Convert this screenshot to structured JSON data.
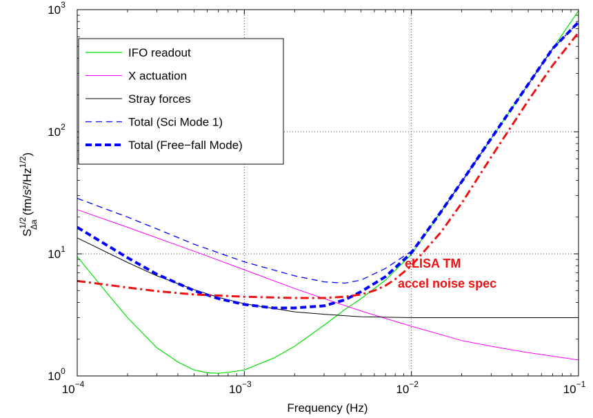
{
  "chart_data": {
    "type": "line",
    "xscale": "log",
    "yscale": "log",
    "xlim": [
      0.0001,
      0.1
    ],
    "ylim": [
      1,
      1000
    ],
    "xlabel": "Frequency (Hz)",
    "ylabel": {
      "base": "S",
      "sup": "1/2",
      "sub": "Δa",
      "units": "(fm/s²/Hz",
      "units_sup": "1/2",
      "close": ")"
    },
    "x_ticks": [
      {
        "value": 0.0001,
        "base": "10",
        "exp": "−4"
      },
      {
        "value": 0.001,
        "base": "10",
        "exp": "−3"
      },
      {
        "value": 0.01,
        "base": "10",
        "exp": "−2"
      },
      {
        "value": 0.1,
        "base": "10",
        "exp": "−1"
      }
    ],
    "y_ticks": [
      {
        "value": 1,
        "base": "10",
        "exp": "0"
      },
      {
        "value": 10,
        "base": "10",
        "exp": "1"
      },
      {
        "value": 100,
        "base": "10",
        "exp": "2"
      },
      {
        "value": 1000,
        "base": "10",
        "exp": "3"
      }
    ],
    "grid": true,
    "legend_position": "top-left",
    "series": [
      {
        "name": "IFO readout",
        "color": "#00e000",
        "style": "solid",
        "width": 1.2,
        "x": [
          0.0001,
          0.00015,
          0.0002,
          0.0003,
          0.0004,
          0.0005,
          0.0006,
          0.0007,
          0.0008,
          0.001,
          0.0015,
          0.002,
          0.003,
          0.004,
          0.005,
          0.007,
          0.01,
          0.015,
          0.02,
          0.03,
          0.05,
          0.07,
          0.1
        ],
        "y": [
          9.5,
          4.8,
          3.0,
          1.7,
          1.3,
          1.12,
          1.06,
          1.05,
          1.07,
          1.12,
          1.4,
          1.75,
          2.6,
          3.5,
          4.3,
          6.1,
          9.9,
          22,
          39,
          88,
          245,
          480,
          980
        ]
      },
      {
        "name": "X actuation",
        "color": "#ff00ff",
        "style": "solid",
        "width": 1,
        "x": [
          0.0001,
          0.0002,
          0.0003,
          0.0005,
          0.001,
          0.002,
          0.003,
          0.005,
          0.01,
          0.02,
          0.03,
          0.05,
          0.1
        ],
        "y": [
          23,
          16.5,
          13.5,
          10.5,
          7.4,
          5.2,
          4.3,
          3.4,
          2.55,
          1.95,
          1.75,
          1.55,
          1.35
        ]
      },
      {
        "name": "Stray forces",
        "color": "#000000",
        "style": "solid",
        "width": 1,
        "x": [
          0.0001,
          0.0002,
          0.0003,
          0.0005,
          0.0007,
          0.001,
          0.002,
          0.003,
          0.005,
          0.01,
          0.02,
          0.05,
          0.1
        ],
        "y": [
          13.5,
          8.5,
          6.6,
          5.1,
          4.4,
          3.9,
          3.35,
          3.2,
          3.05,
          3.0,
          3.0,
          3.0,
          3.0
        ]
      },
      {
        "name": "Total (Sci Mode 1)",
        "color": "#0000ff",
        "style": "dashed",
        "width": 1.3,
        "x": [
          0.0001,
          0.0002,
          0.0003,
          0.0005,
          0.001,
          0.002,
          0.003,
          0.004,
          0.005,
          0.007,
          0.01,
          0.015,
          0.02,
          0.03,
          0.05,
          0.07,
          0.1
        ],
        "y": [
          28.5,
          20,
          16,
          12,
          8.6,
          6.6,
          5.9,
          5.75,
          6.1,
          7.6,
          10.5,
          22,
          39,
          88,
          245,
          480,
          790
        ]
      },
      {
        "name": "Total (Free−fall Mode)",
        "color": "#0000ff",
        "style": "dashed-thick",
        "width": 4,
        "x": [
          0.0001,
          0.00015,
          0.0002,
          0.0003,
          0.0005,
          0.0007,
          0.001,
          0.0015,
          0.002,
          0.003,
          0.004,
          0.005,
          0.007,
          0.01,
          0.015,
          0.02,
          0.03,
          0.05,
          0.07,
          0.1
        ],
        "y": [
          16.5,
          11.8,
          9.3,
          6.8,
          5.0,
          4.3,
          3.85,
          3.6,
          3.6,
          3.75,
          4.2,
          4.9,
          6.5,
          10.2,
          22,
          39,
          88,
          245,
          480,
          790
        ]
      },
      {
        "name": "eLISA TM accel noise spec",
        "color": "#ee1111",
        "style": "dashdot",
        "width": 3,
        "x": [
          0.0001,
          0.0002,
          0.0003,
          0.0005,
          0.001,
          0.002,
          0.003,
          0.004,
          0.005,
          0.006,
          0.007,
          0.008,
          0.01,
          0.015,
          0.02,
          0.03,
          0.05,
          0.07,
          0.1
        ],
        "y": [
          6.0,
          5.3,
          4.95,
          4.65,
          4.45,
          4.35,
          4.35,
          4.45,
          4.65,
          5.0,
          5.5,
          6.2,
          8.0,
          15,
          26,
          62,
          180,
          350,
          650
        ]
      }
    ],
    "legend_entries": [
      "IFO readout",
      "X actuation",
      "Stray forces",
      "Total (Sci Mode 1)",
      "Total (Free−fall Mode)"
    ],
    "annotation": {
      "lines": [
        "eLISA TM",
        "accel noise spec"
      ],
      "color": "#ee1111"
    }
  }
}
